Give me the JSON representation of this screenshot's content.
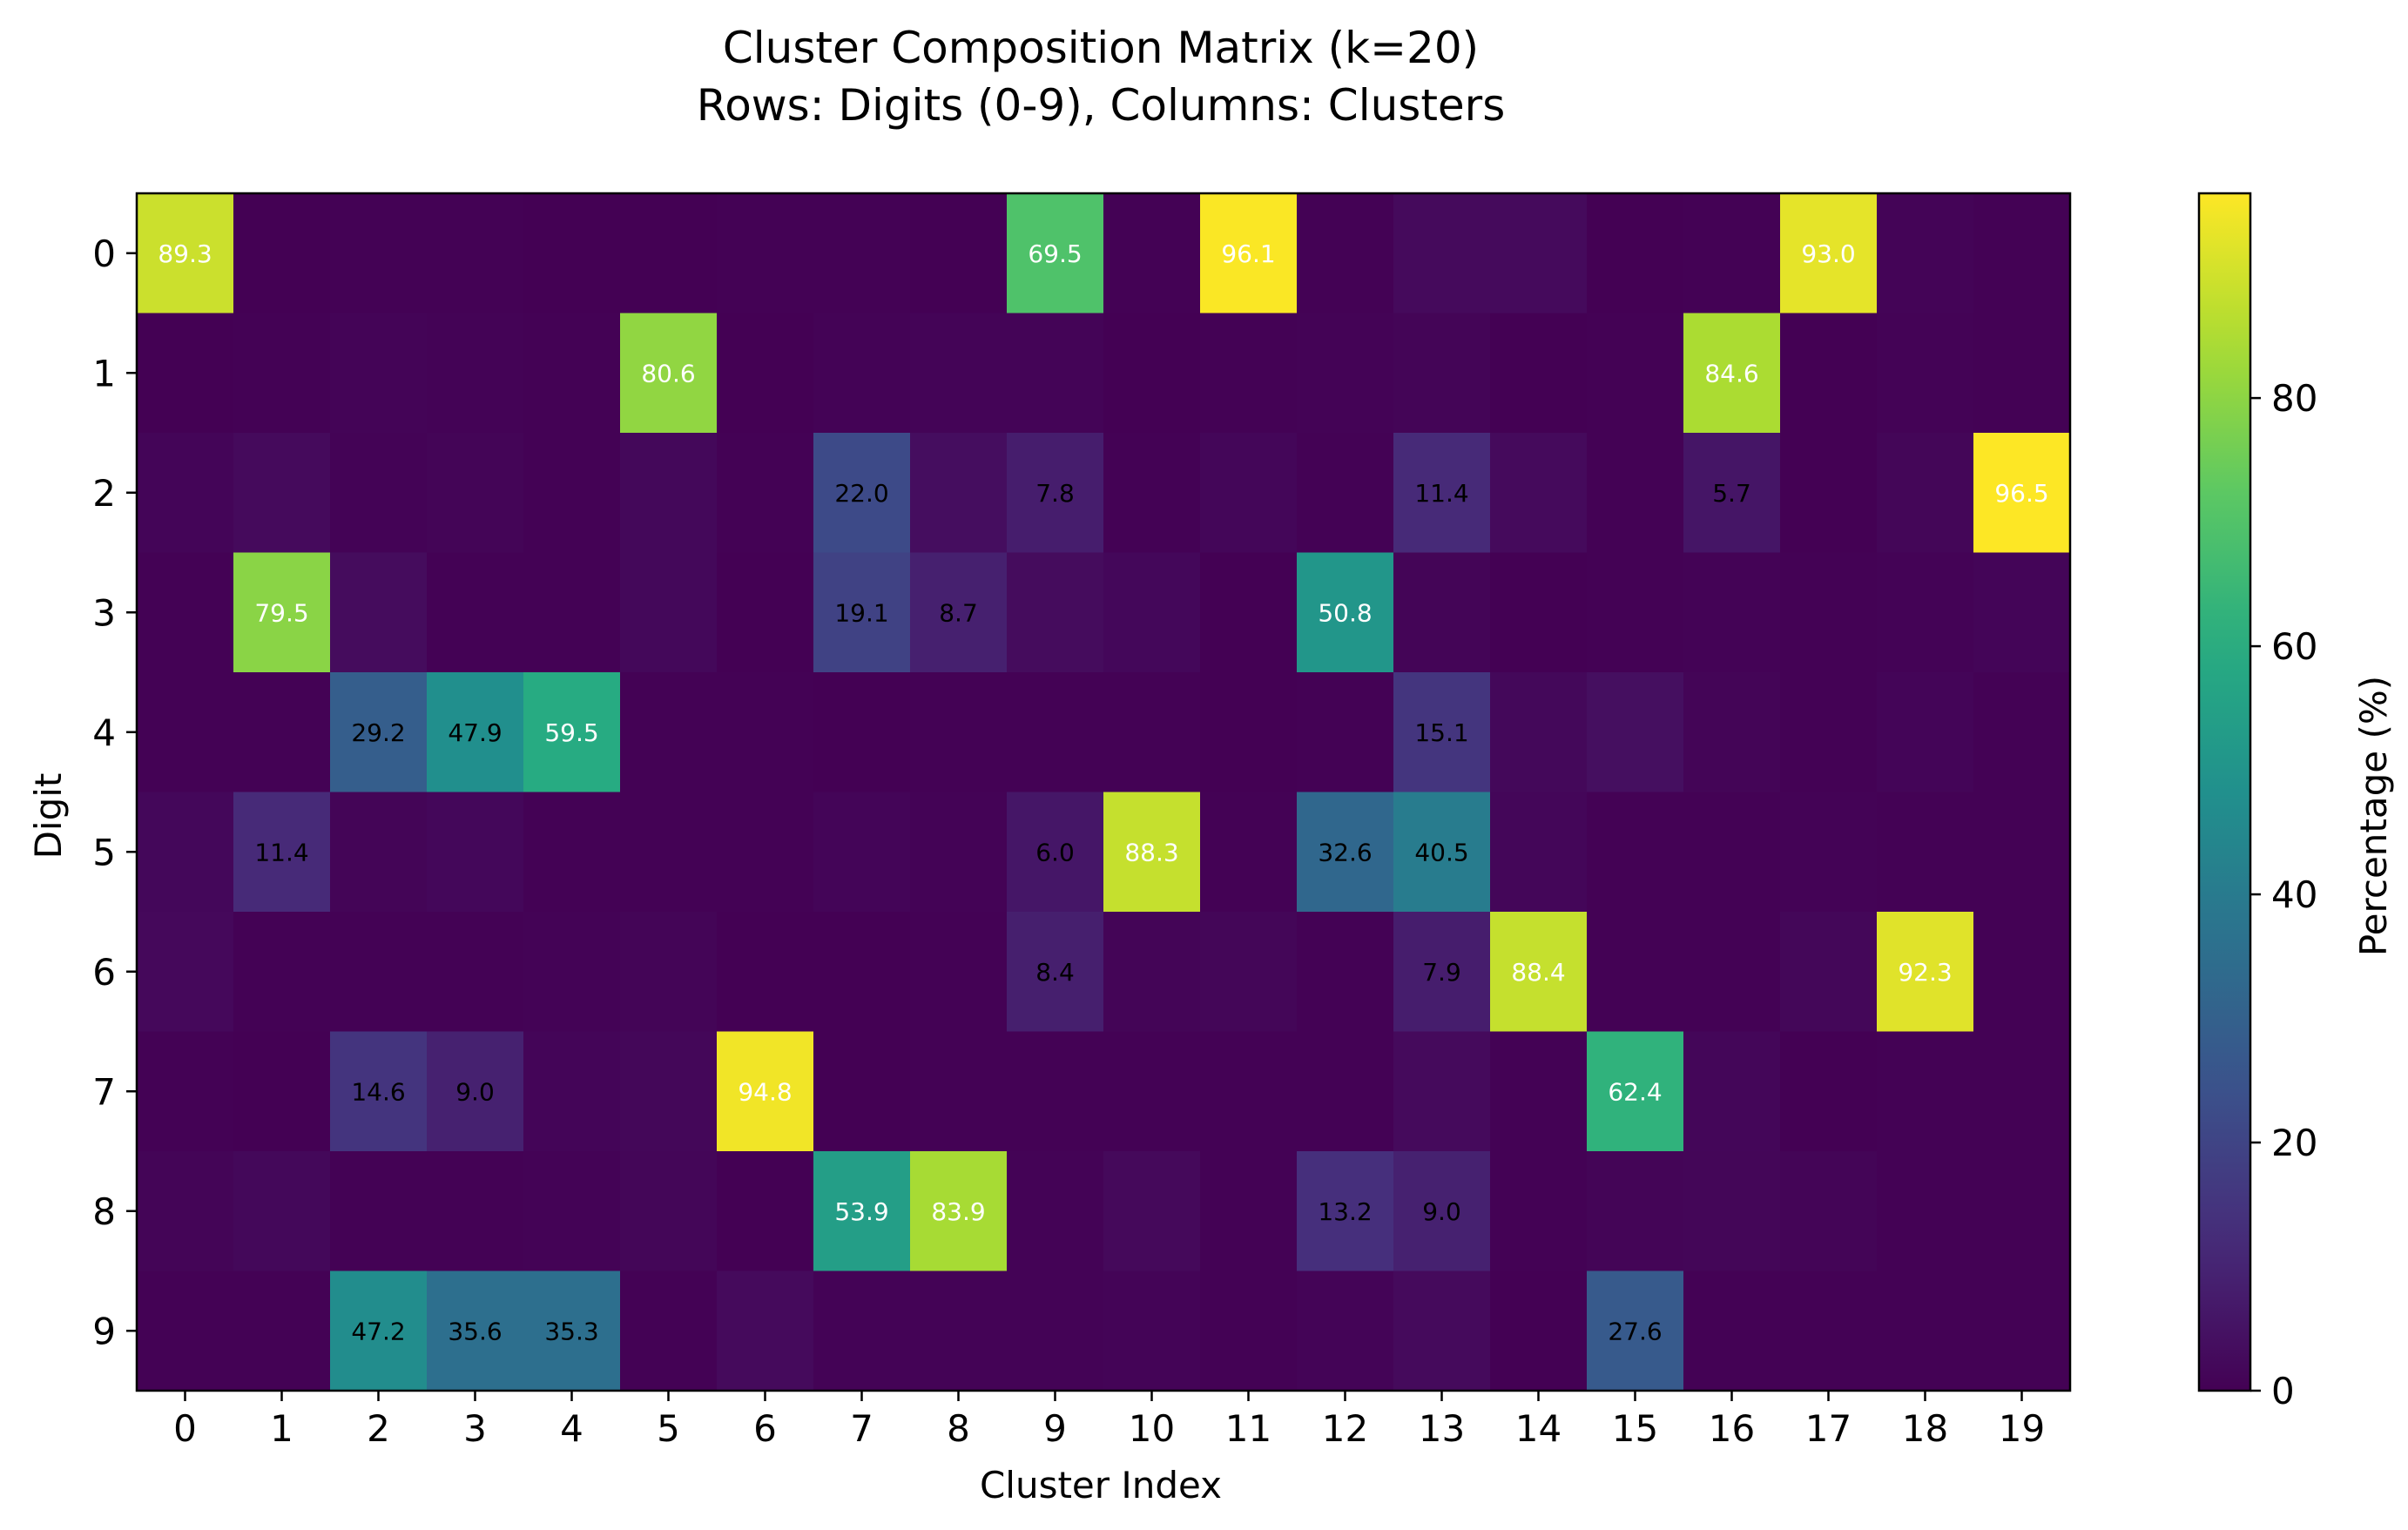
{
  "chart_data": {
    "type": "heatmap",
    "title": "Cluster Composition Matrix (k=20)",
    "subtitle": "Rows: Digits (0-9), Columns: Clusters",
    "xlabel": "Cluster Index",
    "ylabel": "Digit",
    "colorbar_label": "Percentage (%)",
    "colormap": "viridis",
    "vmin": 0,
    "vmax": 96.5,
    "colorbar_ticks": [
      "0",
      "20",
      "40",
      "60",
      "80"
    ],
    "x_categories": [
      "0",
      "1",
      "2",
      "3",
      "4",
      "5",
      "6",
      "7",
      "8",
      "9",
      "10",
      "11",
      "12",
      "13",
      "14",
      "15",
      "16",
      "17",
      "18",
      "19"
    ],
    "y_categories": [
      "0",
      "1",
      "2",
      "3",
      "4",
      "5",
      "6",
      "7",
      "8",
      "9"
    ],
    "annotation_threshold": 5,
    "values": [
      [
        89.3,
        0.1,
        0.3,
        0.4,
        0.1,
        0.1,
        0.2,
        0.2,
        0.1,
        69.5,
        0.4,
        96.1,
        0.2,
        2.6,
        2.5,
        0.1,
        0.2,
        93.0,
        0.8,
        0.2
      ],
      [
        0.1,
        0.2,
        0.8,
        0.5,
        0.3,
        80.6,
        0.1,
        0.6,
        0.9,
        0.8,
        0.1,
        0.2,
        0.6,
        1.0,
        0.1,
        0.2,
        84.6,
        0.1,
        0.5,
        0.2
      ],
      [
        1.2,
        2.6,
        0.7,
        1.0,
        0.3,
        1.9,
        0.3,
        22.0,
        3.4,
        7.8,
        0.2,
        1.5,
        0.3,
        11.4,
        2.5,
        0.4,
        5.7,
        0.1,
        1.3,
        96.5
      ],
      [
        0.3,
        79.5,
        3.0,
        0.3,
        0.2,
        2.0,
        0.1,
        19.1,
        8.7,
        3.0,
        1.8,
        0.1,
        50.8,
        1.1,
        0.1,
        0.3,
        0.6,
        0.2,
        0.5,
        1.2
      ],
      [
        0.3,
        0.2,
        29.2,
        47.9,
        59.5,
        0.4,
        0.2,
        0.1,
        0.4,
        0.3,
        0.2,
        0.1,
        0.2,
        15.1,
        2.0,
        3.8,
        1.0,
        0.3,
        1.2,
        0.2
      ],
      [
        1.8,
        11.4,
        1.0,
        1.8,
        0.3,
        0.3,
        0.2,
        1.2,
        0.5,
        6.0,
        88.3,
        0.2,
        32.6,
        40.5,
        1.5,
        0.3,
        0.4,
        0.5,
        0.4,
        0.3
      ],
      [
        2.1,
        0.2,
        0.4,
        0.3,
        0.6,
        1.0,
        0.1,
        0.1,
        0.2,
        8.4,
        1.0,
        1.4,
        0.3,
        7.9,
        88.4,
        0.2,
        0.3,
        1.6,
        92.3,
        0.2
      ],
      [
        0.2,
        0.1,
        14.6,
        9.0,
        1.2,
        1.7,
        94.8,
        0.1,
        0.4,
        0.2,
        0.4,
        0.3,
        0.3,
        2.4,
        0.2,
        62.4,
        1.5,
        0.1,
        0.3,
        0.3
      ],
      [
        1.0,
        1.9,
        0.4,
        0.3,
        0.5,
        1.4,
        0.1,
        53.9,
        83.9,
        0.5,
        2.2,
        0.2,
        13.2,
        9.0,
        0.2,
        1.0,
        1.4,
        1.0,
        0.3,
        0.3
      ],
      [
        0.2,
        0.3,
        47.2,
        35.6,
        35.3,
        0.4,
        2.6,
        0.5,
        0.6,
        0.5,
        0.8,
        0.3,
        0.8,
        2.4,
        0.1,
        27.6,
        0.3,
        0.3,
        0.3,
        0.3
      ]
    ]
  }
}
